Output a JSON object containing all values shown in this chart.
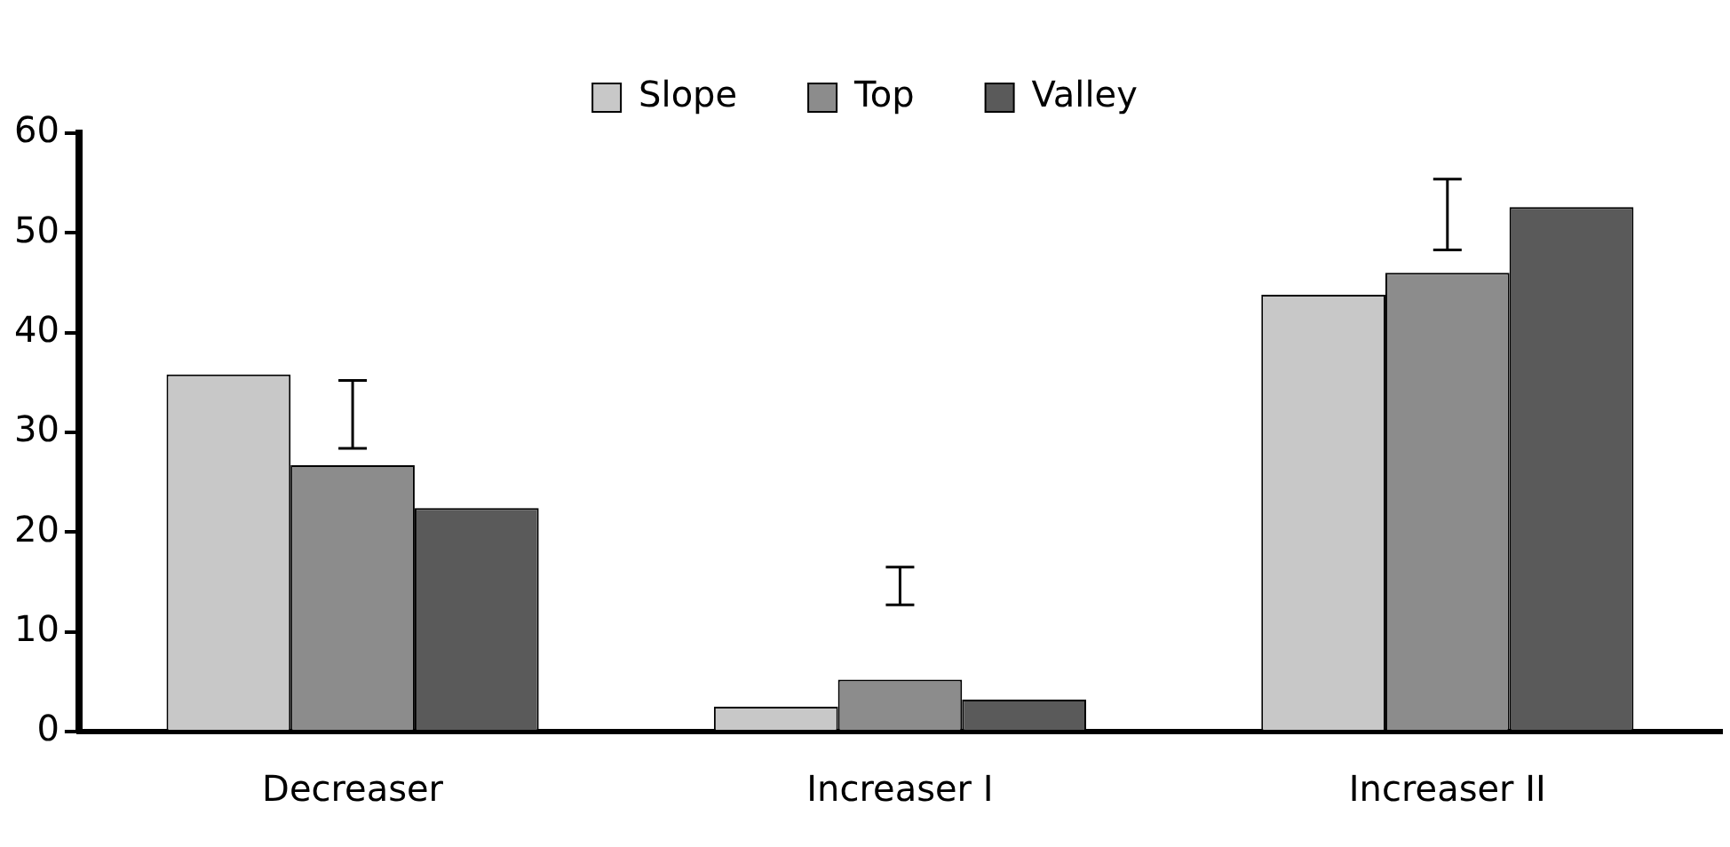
{
  "chart_data": {
    "type": "bar",
    "categories": [
      "Decreaser",
      "Increaser I",
      "Increaser II"
    ],
    "series": [
      {
        "name": "Slope",
        "color": "#c8c8c8",
        "values": [
          35.8,
          2.5,
          43.8
        ]
      },
      {
        "name": "Top",
        "color": "#8c8c8c",
        "values": [
          26.7,
          5.2,
          46
        ],
        "errors": [
          [
            28.4,
            35.2
          ],
          [
            12.7,
            16.5
          ],
          [
            48.3,
            55.4
          ]
        ]
      },
      {
        "name": "Valley",
        "color": "#5a5a5a",
        "values": [
          22.4,
          3.2,
          52.6
        ]
      }
    ],
    "ylim": [
      0,
      60
    ],
    "yticks": [
      0,
      10,
      20,
      30,
      40,
      50,
      60
    ],
    "grid": false,
    "legend": "top"
  }
}
